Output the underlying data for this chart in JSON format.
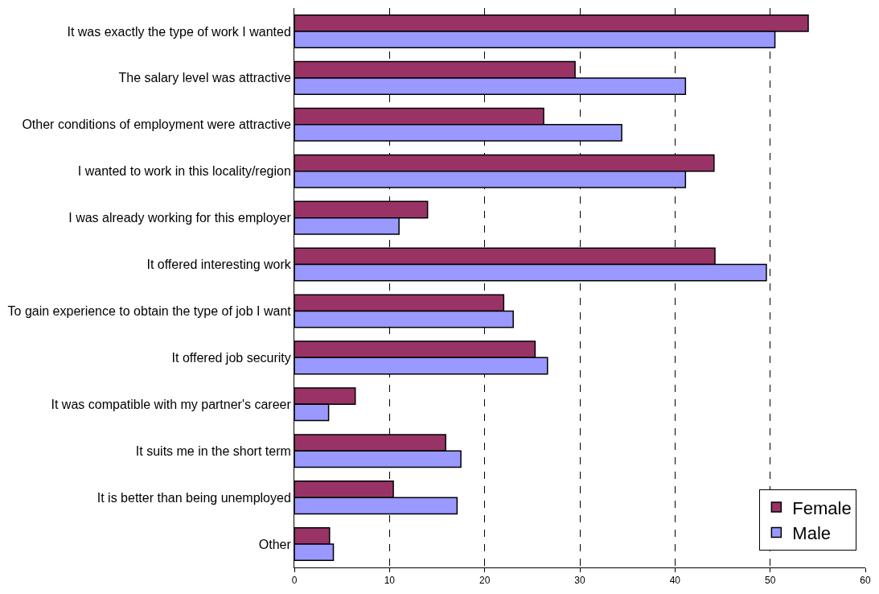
{
  "chart_data": {
    "type": "bar",
    "orientation": "horizontal",
    "categories": [
      "It was exactly the type of work I wanted",
      "The salary level was attractive",
      "Other conditions of employment were attractive",
      "I wanted to work in this locality/region",
      "I was already working for this employer",
      "It offered interesting work",
      "To gain experience to obtain the type of job I want",
      "It offered job security",
      "It was compatible with my partner's career",
      "It suits me in the short term",
      "It is better than being unemployed",
      "Other"
    ],
    "series": [
      {
        "name": "Female",
        "color": "#993366",
        "values": [
          54.0,
          29.5,
          26.2,
          44.1,
          14.0,
          44.2,
          22.0,
          25.3,
          6.4,
          15.9,
          10.4,
          3.7
        ]
      },
      {
        "name": "Male",
        "color": "#9999ff",
        "values": [
          50.5,
          41.1,
          34.4,
          41.1,
          11.0,
          49.6,
          23.0,
          26.6,
          3.6,
          17.5,
          17.1,
          4.1
        ]
      }
    ],
    "xlim": [
      0,
      60
    ],
    "xticks": [
      0,
      10,
      20,
      30,
      40,
      50,
      60
    ],
    "grid": "x",
    "legend": "bottom right"
  }
}
